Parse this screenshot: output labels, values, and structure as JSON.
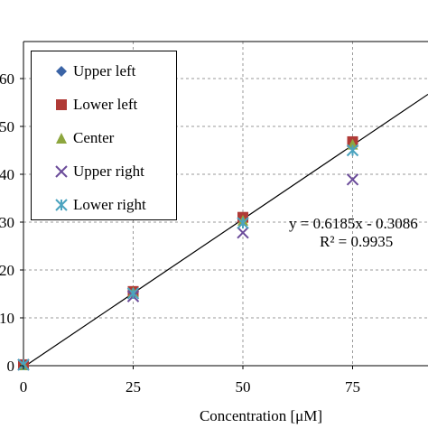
{
  "chart_data": {
    "type": "scatter",
    "xlabel": "Concentration [μM]",
    "ylabel": "",
    "xlim": [
      0,
      90
    ],
    "ylim": [
      0,
      60
    ],
    "x_ticks": [
      "0",
      "25",
      "50",
      "75"
    ],
    "y_ticks": [
      "0",
      "10",
      "20",
      "30",
      "40",
      "50",
      "60"
    ],
    "grid": true,
    "legend_placement": "top-left",
    "series": [
      {
        "name": "Upper left",
        "marker": "diamond",
        "color": "#3B64A6",
        "points": [
          [
            0,
            0.2
          ],
          [
            25,
            15.4
          ],
          [
            50,
            30.9
          ],
          [
            75,
            46.5
          ]
        ]
      },
      {
        "name": "Lower left",
        "marker": "square",
        "color": "#B03A36",
        "points": [
          [
            0,
            0.2
          ],
          [
            25,
            15.5
          ],
          [
            50,
            31.0
          ],
          [
            75,
            46.8
          ]
        ]
      },
      {
        "name": "Center",
        "marker": "triangle",
        "color": "#8DA63E",
        "points": [
          [
            0,
            0.2
          ],
          [
            25,
            15.4
          ],
          [
            50,
            30.4
          ],
          [
            75,
            46.3
          ]
        ]
      },
      {
        "name": "Upper right",
        "marker": "x",
        "color": "#6B4C9A",
        "points": [
          [
            0,
            0.2
          ],
          [
            25,
            14.5
          ],
          [
            50,
            27.8
          ],
          [
            75,
            38.9
          ]
        ]
      },
      {
        "name": "Lower right",
        "marker": "star",
        "color": "#4BA3BF",
        "points": [
          [
            0,
            0.2
          ],
          [
            25,
            15.1
          ],
          [
            50,
            29.8
          ],
          [
            75,
            45.0
          ]
        ]
      }
    ],
    "trendline": {
      "slope": 0.6185,
      "intercept": -0.3086
    },
    "annotations": {
      "equation": "y = 0.6185x - 0.3086",
      "r_squared": "R² = 0.9935"
    }
  }
}
